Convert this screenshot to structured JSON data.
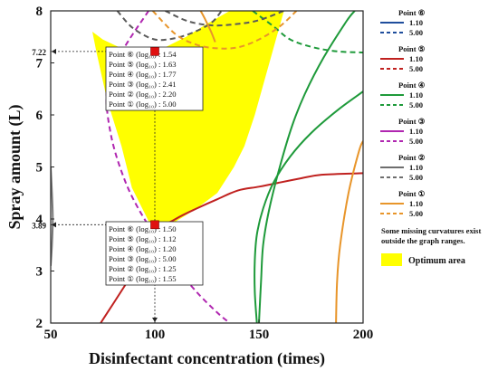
{
  "chart_data": {
    "type": "line",
    "xlabel": "Disinfectant concentration (times)",
    "ylabel": "Spray amount (L)",
    "xlim": [
      50,
      200
    ],
    "ylim": [
      2,
      8
    ],
    "x_ticks": [
      "50",
      "100",
      "150",
      "200"
    ],
    "y_ticks": [
      "2",
      "3",
      "4",
      "5",
      "6",
      "7",
      "8"
    ],
    "grid": false,
    "legend_position": "right",
    "optimum_area": {
      "label": "Optimum area",
      "color": "#ffff00",
      "polygon": [
        [
          100,
          3.72
        ],
        [
          89,
          4.6
        ],
        [
          84,
          5.4
        ],
        [
          77,
          6.3
        ],
        [
          72,
          7.2
        ],
        [
          70,
          7.6
        ],
        [
          75,
          7.45
        ],
        [
          85,
          7.26
        ],
        [
          95,
          7.25
        ],
        [
          105,
          7.3
        ],
        [
          115,
          7.5
        ],
        [
          125,
          7.75
        ],
        [
          136,
          8.0
        ],
        [
          162,
          8.0
        ],
        [
          155,
          7.0
        ],
        [
          148,
          6.0
        ],
        [
          143,
          5.4
        ],
        [
          138,
          5.0
        ],
        [
          130,
          4.5
        ],
        [
          120,
          4.2
        ],
        [
          110,
          3.95
        ],
        [
          104,
          3.82
        ]
      ]
    },
    "series": [
      {
        "name": "Point ⑥ 1.10",
        "color": "#1f4e9c",
        "dash": "solid",
        "points": []
      },
      {
        "name": "Point ⑥ 5.00",
        "color": "#1f4e9c",
        "dash": "dashed",
        "points": []
      },
      {
        "name": "Point ⑤ 1.10",
        "color": "#c0211f",
        "dash": "solid",
        "points": [
          [
            74,
            2.0
          ],
          [
            90,
            3.0
          ],
          [
            100,
            3.72
          ],
          [
            110,
            4.0
          ],
          [
            120,
            4.2
          ],
          [
            130,
            4.38
          ],
          [
            140,
            4.55
          ],
          [
            150,
            4.62
          ],
          [
            160,
            4.7
          ],
          [
            170,
            4.78
          ],
          [
            180,
            4.85
          ],
          [
            200,
            4.88
          ]
        ]
      },
      {
        "name": "Point ⑤ 5.00",
        "color": "#c0211f",
        "dash": "dashed",
        "points": []
      },
      {
        "name": "Point ④ 1.10",
        "color": "#1e9a3a",
        "dash": "solid",
        "points": [
          [
            149,
            2.0
          ],
          [
            148,
            2.6
          ],
          [
            148,
            3.2
          ],
          [
            149,
            3.7
          ],
          [
            152,
            4.2
          ],
          [
            157,
            4.7
          ],
          [
            165,
            5.2
          ],
          [
            175,
            5.65
          ],
          [
            188,
            6.1
          ],
          [
            200,
            6.45
          ]
        ]
      },
      {
        "name": "Point ④ 5.00",
        "color": "#1e9a3a",
        "dash": "dashed",
        "points": [
          [
            147,
            8.0
          ],
          [
            157,
            7.7
          ],
          [
            165,
            7.45
          ],
          [
            176,
            7.3
          ],
          [
            188,
            7.22
          ],
          [
            200,
            7.2
          ]
        ]
      },
      {
        "name": "Point ④ 1.10",
        "color": "#1e9a3a",
        "dash": "solid",
        "points": [
          [
            150,
            2.0
          ],
          [
            151,
            2.8
          ],
          [
            152,
            3.5
          ],
          [
            155,
            4.2
          ],
          [
            160,
            5.0
          ],
          [
            166,
            5.8
          ],
          [
            172,
            6.4
          ],
          [
            181,
            7.1
          ],
          [
            192,
            7.8
          ],
          [
            196,
            8.0
          ]
        ]
      },
      {
        "name": "Point ③ 1.10",
        "color": "#b026b0",
        "dash": "solid",
        "points": []
      },
      {
        "name": "Point ③ 5.00",
        "color": "#b026b0",
        "dash": "dashed",
        "points": [
          [
            97,
            8.0
          ],
          [
            84,
            7.2
          ],
          [
            77,
            6.5
          ],
          [
            79,
            5.6
          ],
          [
            86,
            4.7
          ],
          [
            95,
            4.0
          ],
          [
            102,
            3.65
          ],
          [
            110,
            3.1
          ],
          [
            120,
            2.6
          ],
          [
            130,
            2.2
          ],
          [
            136,
            2.0
          ]
        ]
      },
      {
        "name": "Point ② 1.10",
        "color": "#7a7a7a",
        "dash": "solid",
        "points": [
          [
            50,
            5.0
          ],
          [
            50.6,
            4.5
          ],
          [
            51,
            4.0
          ],
          [
            50.6,
            3.5
          ],
          [
            50,
            3.1
          ]
        ]
      },
      {
        "name": "Point ② 5.00",
        "color": "#5a5a5a",
        "dash": "dashed",
        "points": [
          [
            82,
            8.0
          ],
          [
            88,
            7.72
          ],
          [
            94,
            7.55
          ],
          [
            100,
            7.45
          ],
          [
            106,
            7.45
          ],
          [
            114,
            7.52
          ],
          [
            122,
            7.65
          ],
          [
            128,
            7.8
          ],
          [
            132,
            8.0
          ]
        ]
      },
      {
        "name": "Point ② 5.00",
        "color": "#5a5a5a",
        "dash": "dashed",
        "points": [
          [
            105,
            8.0
          ],
          [
            116,
            7.8
          ],
          [
            128,
            7.72
          ],
          [
            140,
            7.75
          ],
          [
            150,
            7.82
          ],
          [
            162,
            8.0
          ]
        ]
      },
      {
        "name": "Point ① 1.10",
        "color": "#e8952a",
        "dash": "solid",
        "points": [
          [
            122,
            8.0
          ],
          [
            124,
            7.85
          ],
          [
            127,
            7.6
          ],
          [
            129,
            7.4
          ]
        ]
      },
      {
        "name": "Point ① 1.10",
        "color": "#e8952a",
        "dash": "solid",
        "points": [
          [
            187,
            2.0
          ],
          [
            187.5,
            2.8
          ],
          [
            189,
            3.5
          ],
          [
            193,
            4.5
          ],
          [
            198,
            5.3
          ],
          [
            200,
            5.5
          ]
        ]
      },
      {
        "name": "Point ① 5.00",
        "color": "#e8952a",
        "dash": "dashed",
        "points": [
          [
            99,
            8.0
          ],
          [
            110,
            7.55
          ],
          [
            120,
            7.35
          ],
          [
            130,
            7.28
          ],
          [
            140,
            7.3
          ],
          [
            150,
            7.45
          ],
          [
            160,
            7.7
          ],
          [
            168,
            8.0
          ]
        ]
      }
    ],
    "markers": [
      {
        "label_x": "100",
        "label_y": "7.22",
        "x": 100,
        "y": 7.22,
        "color": "#e01010"
      },
      {
        "label_x": "100",
        "label_y": "3.89",
        "x": 100,
        "y": 3.89,
        "color": "#e01010"
      }
    ],
    "annotations": [
      {
        "lines": [
          "Point ⑥ (log₁₀) : 1.54",
          "Point ⑤ (log₁₀) : 1.63",
          "Point ④ (log₁₀) : 1.77",
          "Point ③ (log₁₀) : 2.41",
          "Point ② (log₁₀) : 2.20",
          "Point ① (log₁₀) : 5.00"
        ]
      },
      {
        "lines": [
          "Point ⑥ (log₁₀) : 1.50",
          "Point ⑤ (log₁₀) : 1.12",
          "Point ④ (log₁₀) : 1.20",
          "Point ③ (log₁₀) : 5.00",
          "Point ② (log₁₀) : 1.25",
          "Point ① (log₁₀) : 1.55"
        ]
      }
    ],
    "legend": {
      "groups": [
        {
          "title": "Point ⑥",
          "color": "#1f4e9c",
          "entries": [
            "1.10",
            "5.00"
          ]
        },
        {
          "title": "Point ⑤",
          "color": "#c0211f",
          "entries": [
            "1.10",
            "5.00"
          ]
        },
        {
          "title": "Point ④",
          "color": "#1e9a3a",
          "entries": [
            "1.10",
            "5.00"
          ]
        },
        {
          "title": "Point ③",
          "color": "#b026b0",
          "entries": [
            "1.10",
            "5.00"
          ]
        },
        {
          "title": "Point ②",
          "color": "#6e6e6e",
          "entries": [
            "1.10",
            "5.00"
          ]
        },
        {
          "title": "Point ①",
          "color": "#e8952a",
          "entries": [
            "1.10",
            "5.00"
          ]
        }
      ],
      "note": [
        "Some missing curvatures exist",
        "outside the graph ranges."
      ],
      "optimum_label": "Optimum area",
      "optimum_color": "#ffff00"
    }
  }
}
